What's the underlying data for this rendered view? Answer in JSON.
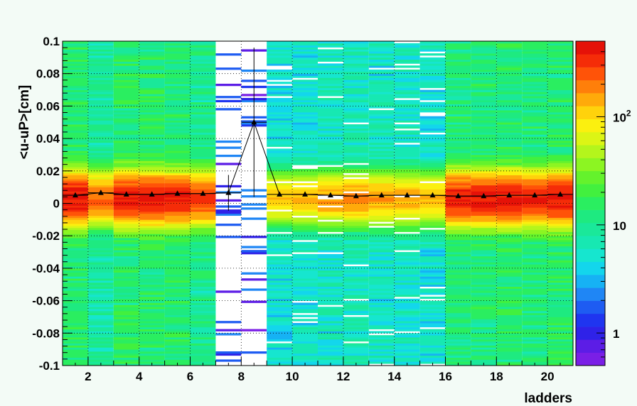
{
  "chart_data": {
    "type": "heatmap",
    "title": "",
    "xlabel": "ladders",
    "ylabel": "<u-uP>[cm]",
    "xlim": [
      1,
      21
    ],
    "ylim": [
      -0.1,
      0.1
    ],
    "x_ticks": [
      2,
      4,
      6,
      8,
      10,
      12,
      14,
      16,
      18,
      20
    ],
    "y_ticks": [
      0.1,
      0.08,
      0.06,
      0.04,
      0.02,
      0,
      -0.02,
      -0.04,
      -0.06,
      -0.08,
      -0.1
    ],
    "y_tick_labels": [
      "0.1",
      "0.08",
      "0.06",
      "0.04",
      "0.02",
      "0",
      "-0.02",
      "-0.04",
      "-0.06",
      "-0.08",
      "-0.1"
    ],
    "grid": true,
    "z_scale": "log",
    "z_range": [
      0.5,
      500
    ],
    "colorbar_ticks": [
      {
        "value": 1,
        "label": "1"
      },
      {
        "value": 10,
        "label": "10"
      },
      {
        "value": 100,
        "base": "10",
        "exp": "2"
      }
    ],
    "ladders": [
      1,
      2,
      3,
      4,
      5,
      6,
      7,
      8,
      9,
      10,
      11,
      12,
      13,
      14,
      15,
      16,
      17,
      18,
      19,
      20
    ],
    "column_intensity": [
      1.0,
      0.55,
      1.0,
      1.0,
      0.9,
      0.7,
      0.05,
      0.06,
      0.25,
      0.3,
      0.35,
      0.4,
      0.35,
      0.35,
      0.3,
      0.9,
      0.9,
      1.0,
      0.9,
      1.0
    ],
    "profile_means": [
      0.005,
      0.0065,
      0.0055,
      0.0055,
      0.006,
      0.006,
      0.0065,
      0.05,
      0.0055,
      0.0055,
      0.005,
      0.0045,
      0.005,
      0.005,
      0.005,
      0.0045,
      0.0045,
      0.005,
      0.005,
      0.0055
    ],
    "profile_errors": [
      0.0005,
      0.0005,
      0.0005,
      0.0005,
      0.0005,
      0.0005,
      0.011,
      0.046,
      0.0005,
      0.0005,
      0.0005,
      0.0005,
      0.0005,
      0.0005,
      0.0005,
      0.0005,
      0.0005,
      0.0005,
      0.0005,
      0.0005
    ]
  }
}
